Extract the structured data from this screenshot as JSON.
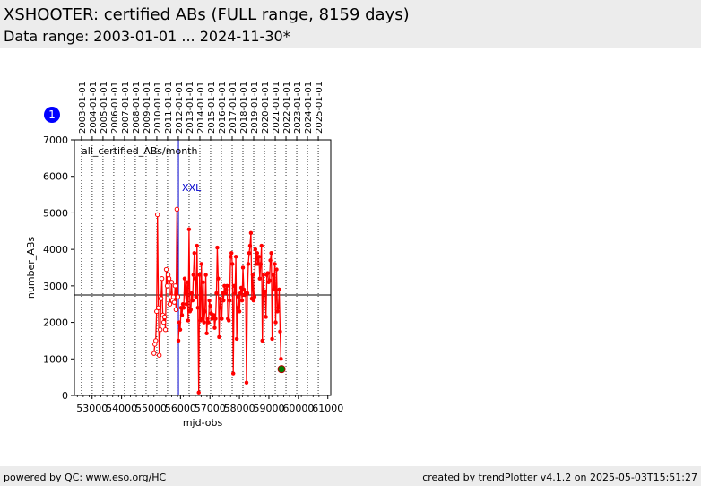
{
  "header": {
    "title": "XSHOOTER: certified ABs (FULL range, 8159 days)",
    "subtitle": "Data range: 2003-01-01 ... 2024-11-30*"
  },
  "footer": {
    "left": "powered by QC: www.eso.org/HC",
    "right": "created by trendPlotter v4.1.2 on 2025-05-03T15:51:27"
  },
  "badge": {
    "label": "1",
    "color": "#0000ff"
  },
  "chart_data": {
    "type": "line",
    "xlabel": "mjd-obs",
    "ylabel": "number_ABs",
    "xlim": [
      52400,
      61100
    ],
    "ylim": [
      0,
      7000
    ],
    "x_ticks": [
      53000,
      54000,
      55000,
      56000,
      57000,
      58000,
      59000,
      60000,
      61000
    ],
    "x_tick_labels": [
      "53000",
      "54000",
      "55000",
      "56000",
      "57000",
      "58000",
      "59000",
      "60000",
      "61000"
    ],
    "y_ticks": [
      0,
      1000,
      2000,
      3000,
      4000,
      5000,
      6000,
      7000
    ],
    "y_tick_labels": [
      "0",
      "1000",
      "2000",
      "3000",
      "4000",
      "5000",
      "6000",
      "7000"
    ],
    "top_dates": [
      {
        "label": "2003-01-01",
        "mjd": 52640
      },
      {
        "label": "2004-01-01",
        "mjd": 53005
      },
      {
        "label": "2005-01-01",
        "mjd": 53371
      },
      {
        "label": "2006-01-01",
        "mjd": 53736
      },
      {
        "label": "2007-01-01",
        "mjd": 54101
      },
      {
        "label": "2008-01-01",
        "mjd": 54466
      },
      {
        "label": "2009-01-01",
        "mjd": 54832
      },
      {
        "label": "2010-01-01",
        "mjd": 55197
      },
      {
        "label": "2011-01-01",
        "mjd": 55562
      },
      {
        "label": "2012-01-01",
        "mjd": 55927
      },
      {
        "label": "2013-01-01",
        "mjd": 56293
      },
      {
        "label": "2014-01-01",
        "mjd": 56658
      },
      {
        "label": "2015-01-01",
        "mjd": 57023
      },
      {
        "label": "2016-01-01",
        "mjd": 57388
      },
      {
        "label": "2017-01-01",
        "mjd": 57754
      },
      {
        "label": "2018-01-01",
        "mjd": 58119
      },
      {
        "label": "2019-01-01",
        "mjd": 58484
      },
      {
        "label": "2020-01-01",
        "mjd": 58849
      },
      {
        "label": "2021-01-01",
        "mjd": 59215
      },
      {
        "label": "2022-01-01",
        "mjd": 59580
      },
      {
        "label": "2023-01-01",
        "mjd": 59945
      },
      {
        "label": "2024-01-01",
        "mjd": 60310
      },
      {
        "label": "2025-01-01",
        "mjd": 60676
      }
    ],
    "annotation": "all_certified_ABs/month",
    "grid": "vertical-dotted-at-year-starts",
    "reference_line": {
      "label": "XXL",
      "x": 55930,
      "color": "#0000cc"
    },
    "horizontal_line": {
      "y": 2750
    },
    "series": [
      {
        "color": "#ff0000",
        "marker": "open-circle",
        "points": [
          [
            55100,
            1150
          ],
          [
            55130,
            1400
          ],
          [
            55160,
            1500
          ],
          [
            55190,
            2300
          ],
          [
            55220,
            4950
          ],
          [
            55250,
            2400
          ],
          [
            55280,
            1100
          ],
          [
            55310,
            1800
          ],
          [
            55340,
            2650
          ],
          [
            55370,
            3200
          ],
          [
            55400,
            2200
          ],
          [
            55430,
            2000
          ],
          [
            55460,
            2150
          ],
          [
            55490,
            1800
          ],
          [
            55520,
            3450
          ],
          [
            55550,
            3000
          ],
          [
            55580,
            3300
          ],
          [
            55610,
            3200
          ],
          [
            55640,
            2500
          ],
          [
            55670,
            2700
          ],
          [
            55700,
            3100
          ],
          [
            55730,
            2600
          ],
          [
            55760,
            2700
          ],
          [
            55790,
            2550
          ],
          [
            55820,
            3000
          ],
          [
            55850,
            2350
          ],
          [
            55880,
            5100
          ],
          [
            55910,
            2700
          ]
        ]
      },
      {
        "color": "#ff0000",
        "marker": "filled-circle",
        "points": [
          [
            55930,
            1500
          ],
          [
            55960,
            2000
          ],
          [
            55990,
            1800
          ],
          [
            56020,
            2400
          ],
          [
            56050,
            2200
          ],
          [
            56080,
            2500
          ],
          [
            56110,
            2400
          ],
          [
            56140,
            3200
          ],
          [
            56170,
            2800
          ],
          [
            56200,
            2500
          ],
          [
            56230,
            3100
          ],
          [
            56260,
            2050
          ],
          [
            56290,
            4550
          ],
          [
            56320,
            2300
          ],
          [
            56350,
            2350
          ],
          [
            56380,
            2800
          ],
          [
            56410,
            2600
          ],
          [
            56440,
            3300
          ],
          [
            56470,
            3900
          ],
          [
            56500,
            3200
          ],
          [
            56530,
            2700
          ],
          [
            56560,
            4100
          ],
          [
            56590,
            2400
          ],
          [
            56620,
            80
          ],
          [
            56650,
            3300
          ],
          [
            56680,
            2050
          ],
          [
            56710,
            3600
          ],
          [
            56740,
            2100
          ],
          [
            56770,
            3100
          ],
          [
            56800,
            2000
          ],
          [
            56830,
            2300
          ],
          [
            56860,
            3300
          ],
          [
            56890,
            1700
          ],
          [
            56920,
            2100
          ],
          [
            56950,
            2000
          ],
          [
            56980,
            2600
          ],
          [
            57010,
            2450
          ],
          [
            57040,
            2250
          ],
          [
            57070,
            2100
          ],
          [
            57100,
            2200
          ],
          [
            57130,
            2200
          ],
          [
            57160,
            1850
          ],
          [
            57190,
            2100
          ],
          [
            57220,
            2800
          ],
          [
            57250,
            4050
          ],
          [
            57280,
            3200
          ],
          [
            57310,
            1600
          ],
          [
            57340,
            2650
          ],
          [
            57370,
            2400
          ],
          [
            57400,
            2100
          ],
          [
            57430,
            2800
          ],
          [
            57460,
            2600
          ],
          [
            57490,
            3000
          ],
          [
            57520,
            2800
          ],
          [
            57550,
            2900
          ],
          [
            57580,
            3000
          ],
          [
            57610,
            2100
          ],
          [
            57640,
            2050
          ],
          [
            57670,
            2600
          ],
          [
            57700,
            3800
          ],
          [
            57730,
            3900
          ],
          [
            57760,
            3600
          ],
          [
            57790,
            600
          ],
          [
            57820,
            3000
          ],
          [
            57850,
            2800
          ],
          [
            57880,
            3800
          ],
          [
            57910,
            1550
          ],
          [
            57940,
            2400
          ],
          [
            57970,
            2700
          ],
          [
            58000,
            2300
          ],
          [
            58030,
            2800
          ],
          [
            58060,
            2950
          ],
          [
            58090,
            2600
          ],
          [
            58120,
            3500
          ],
          [
            58150,
            2900
          ],
          [
            58180,
            2750
          ],
          [
            58210,
            2800
          ],
          [
            58240,
            350
          ],
          [
            58270,
            2800
          ],
          [
            58300,
            3600
          ],
          [
            58330,
            3900
          ],
          [
            58360,
            4100
          ],
          [
            58390,
            4450
          ],
          [
            58420,
            2650
          ],
          [
            58450,
            3300
          ],
          [
            58480,
            2600
          ],
          [
            58510,
            2700
          ],
          [
            58540,
            4000
          ],
          [
            58570,
            3600
          ],
          [
            58600,
            3900
          ],
          [
            58630,
            3600
          ],
          [
            58660,
            3800
          ],
          [
            58690,
            3200
          ],
          [
            58720,
            3600
          ],
          [
            58750,
            4100
          ],
          [
            58780,
            1500
          ],
          [
            58810,
            3300
          ],
          [
            58840,
            2800
          ],
          [
            58870,
            2850
          ],
          [
            58900,
            2150
          ],
          [
            58930,
            3300
          ],
          [
            58960,
            3350
          ],
          [
            58990,
            3100
          ],
          [
            59020,
            3150
          ],
          [
            59050,
            3700
          ],
          [
            59080,
            3900
          ],
          [
            59110,
            1550
          ],
          [
            59140,
            3300
          ],
          [
            59170,
            2900
          ],
          [
            59200,
            3600
          ],
          [
            59230,
            2000
          ],
          [
            59260,
            3450
          ],
          [
            59290,
            2300
          ],
          [
            59320,
            2400
          ],
          [
            59350,
            2900
          ],
          [
            59380,
            1750
          ],
          [
            59410,
            1000
          ]
        ]
      },
      {
        "color": "#008000",
        "marker": "big-filled-circle",
        "points": [
          [
            59430,
            720
          ]
        ]
      }
    ]
  }
}
